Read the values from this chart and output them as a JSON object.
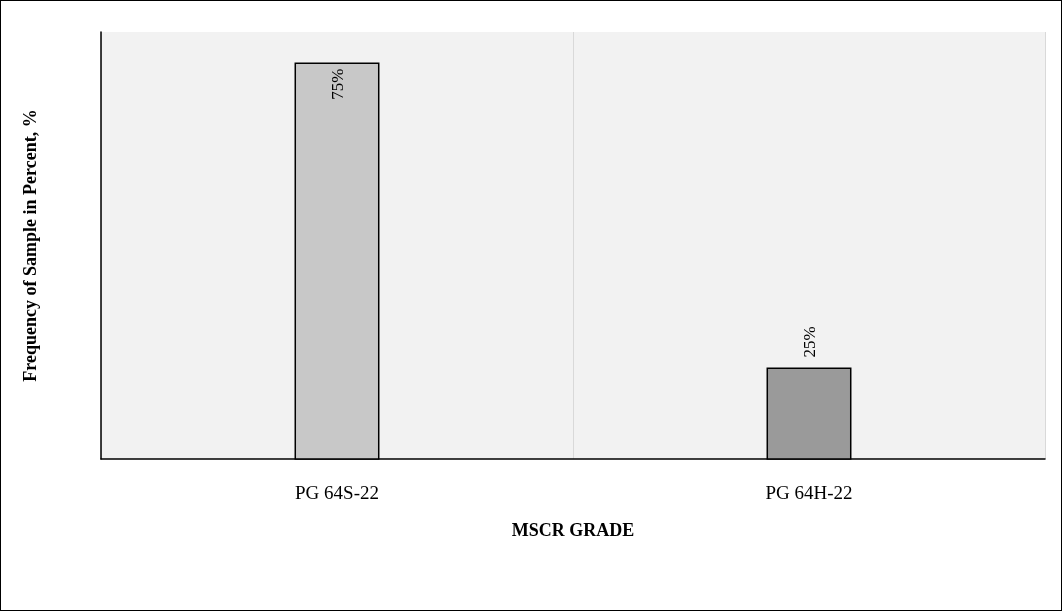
{
  "chart_data": {
    "type": "bar",
    "xlabel": "MSCR GRADE",
    "ylabel": "Frequency of Sample in Percent, %",
    "categories": [
      "PG 64S-22",
      "PG 64H-22"
    ],
    "values": [
      75,
      25
    ],
    "value_labels": [
      "75%",
      "25%"
    ],
    "colors": [
      "#c8c8c8",
      "#9a9a9a"
    ],
    "ylim": [
      10,
      80
    ],
    "tick_labels": "x",
    "grid": "x"
  }
}
